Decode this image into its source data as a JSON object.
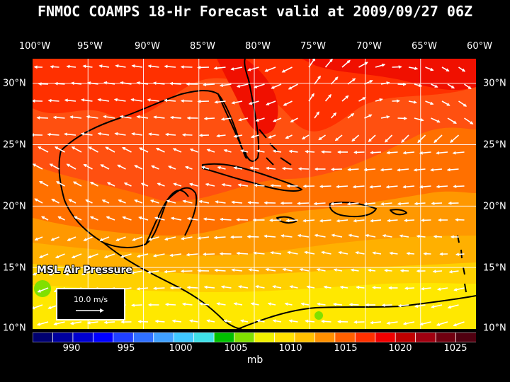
{
  "title": "FNMOC COAMPS 18-Hr Forecast valid at 2009/09/27 06Z",
  "field_label": "MSL Air Pressure",
  "vector_legend": {
    "label": "10.0 m/s"
  },
  "longitude_labels": [
    "100°W",
    "95°W",
    "90°W",
    "85°W",
    "80°W",
    "75°W",
    "70°W",
    "65°W",
    "60°W"
  ],
  "latitude_labels": [
    "30°N",
    "25°N",
    "20°N",
    "15°N",
    "10°N"
  ],
  "colorbar": {
    "unit": "mb",
    "ticks": [
      "990",
      "995",
      "1000",
      "1005",
      "1010",
      "1015",
      "1020",
      "1025"
    ],
    "colors": [
      "#000070",
      "#0000a0",
      "#0000d0",
      "#0000ff",
      "#2040ff",
      "#3070ff",
      "#40a0ff",
      "#40c8ff",
      "#40e0e8",
      "#00c000",
      "#80e000",
      "#f0f000",
      "#ffe000",
      "#ffc000",
      "#ff9000",
      "#ff6000",
      "#ff3000",
      "#f00000",
      "#c00000",
      "#a00010",
      "#700010",
      "#500010"
    ]
  },
  "map": {
    "lon_range": [
      -100,
      -60
    ],
    "lat_range": [
      10,
      32
    ],
    "grid_lons": [
      -95,
      -90,
      -85,
      -80,
      -75,
      -70,
      -65
    ],
    "grid_lats": [
      15,
      20,
      25,
      30
    ],
    "pressure_colors": {
      "1007": "#ffe800",
      "1008": "#ffd000",
      "1009": "#ffb000",
      "1010": "#ff9800",
      "1011": "#ff7000",
      "1012": "#ff5010",
      "1013": "#ff3000",
      "1014": "#f01000"
    }
  }
}
